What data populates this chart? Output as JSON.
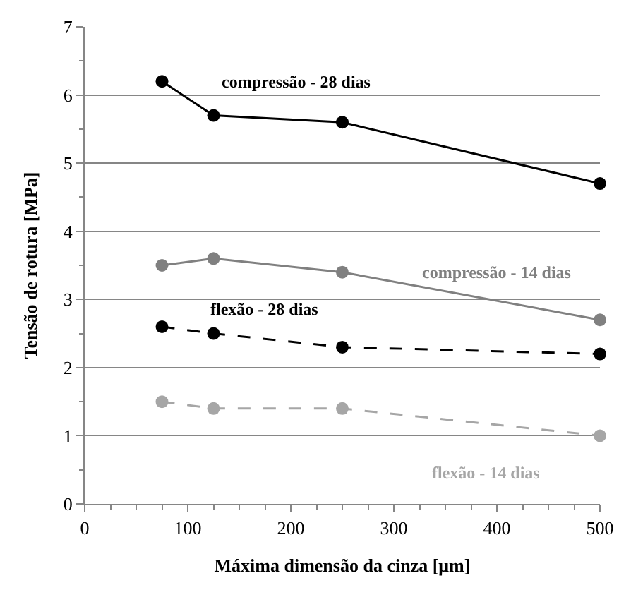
{
  "chart_data": {
    "type": "line",
    "xlabel": "Máxima dimensão da cinza [μm]",
    "ylabel": "Tensão de rotura [MPa]",
    "x": [
      75,
      125,
      250,
      500
    ],
    "series": [
      {
        "name": "compressão - 28 dias",
        "color": "#000000",
        "line_style": "solid",
        "values": [
          6.2,
          5.7,
          5.6,
          4.7
        ]
      },
      {
        "name": "compressão - 14 dias",
        "color": "#808080",
        "line_style": "solid",
        "values": [
          3.5,
          3.6,
          3.4,
          2.7
        ]
      },
      {
        "name": "flexão - 28 dias",
        "color": "#000000",
        "line_style": "dashed",
        "values": [
          2.6,
          2.5,
          2.3,
          2.2
        ]
      },
      {
        "name": "flexão - 14 dias",
        "color": "#a6a6a6",
        "line_style": "dashed",
        "values": [
          1.5,
          1.4,
          1.4,
          1.0
        ]
      }
    ],
    "xlim": [
      0,
      500
    ],
    "xticks": [
      0,
      100,
      200,
      300,
      400,
      500
    ],
    "ylim": [
      0,
      7
    ],
    "yticks": [
      0,
      1,
      2,
      3,
      4,
      5,
      6,
      7
    ],
    "grid": "y",
    "marker": "circle",
    "legend": false
  }
}
